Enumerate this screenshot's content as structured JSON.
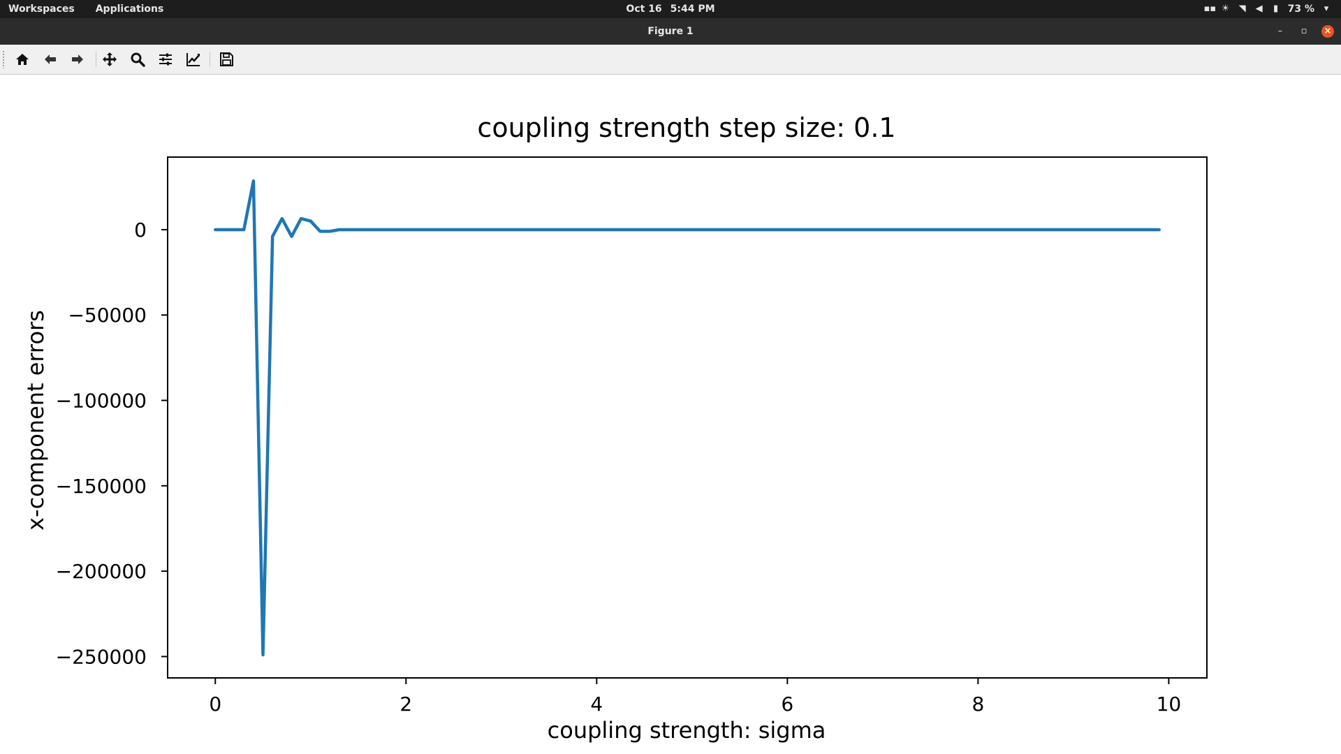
{
  "topbar": {
    "workspaces": "Workspaces",
    "applications": "Applications",
    "date": "Oct 16",
    "time": "5:44 PM",
    "battery": "73 %",
    "tray_icons": [
      "screen-icon",
      "brightness-icon",
      "wifi-icon",
      "volume-icon",
      "battery-icon",
      "chevron-down-icon"
    ]
  },
  "window": {
    "title": "Figure 1",
    "minimize": "–",
    "maximize": "▫",
    "close": "×"
  },
  "toolbar": {
    "buttons": [
      "home-icon",
      "back-arrow-icon",
      "forward-arrow-icon",
      "pan-icon",
      "zoom-icon",
      "configure-subplots-icon",
      "edit-axis-icon",
      "save-icon"
    ]
  },
  "colors": {
    "line": "#1f77b4",
    "close_button": "#e95420",
    "topbar": "#1d1d1d",
    "titlebar": "#2c2c2c"
  },
  "chart_data": {
    "type": "line",
    "title": "coupling strength step size: 0.1",
    "xlabel": "coupling strength: sigma",
    "ylabel": "x-component errors",
    "xlim": [
      -0.5,
      10.4
    ],
    "ylim": [
      -262500,
      42500
    ],
    "xticks": [
      0,
      2,
      4,
      6,
      8,
      10
    ],
    "xtick_labels": [
      "0",
      "2",
      "4",
      "6",
      "8",
      "10"
    ],
    "yticks": [
      0,
      -50000,
      -100000,
      -150000,
      -200000,
      -250000
    ],
    "ytick_labels": [
      "0",
      "−50000",
      "−100000",
      "−150000",
      "−200000",
      "−250000"
    ],
    "grid": false,
    "series": [
      {
        "x": [
          0,
          0.1,
          0.2,
          0.3,
          0.4,
          0.5,
          0.6,
          0.7,
          0.8,
          0.9,
          1.0,
          1.1,
          1.2,
          1.3,
          1.4,
          1.5,
          1.6,
          1.7,
          1.8,
          1.9,
          2.0,
          9.9
        ],
        "y": [
          0,
          0,
          0,
          0,
          28500,
          -249000,
          -4000,
          6500,
          -4000,
          6500,
          5000,
          -1000,
          -1000,
          0,
          0,
          0,
          0,
          0,
          0,
          0,
          0,
          0
        ]
      }
    ]
  }
}
